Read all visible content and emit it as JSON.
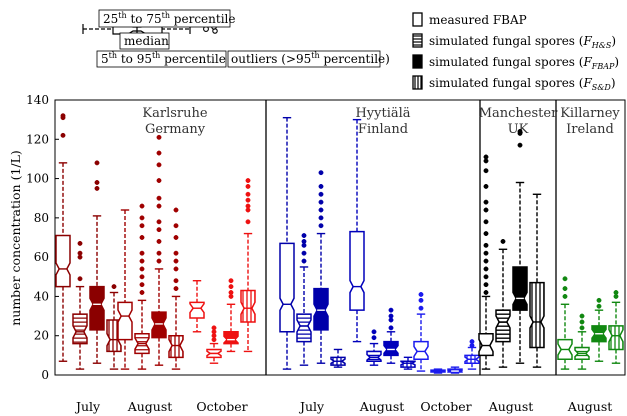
{
  "chart_data": {
    "type": "box",
    "ylabel": "number concentration (1/L)",
    "ylim": [
      0,
      140
    ],
    "yticks": [
      0,
      20,
      40,
      60,
      80,
      100,
      120,
      140
    ],
    "key": {
      "p25_75_main": "25",
      "p25_75_sup1": "th",
      "p25_75_mid": " to 75",
      "p25_75_sup2": "th",
      "p25_75_end": " percentile",
      "median": "median",
      "p5_95_main": "5",
      "p5_95_sup1": "th",
      "p5_95_mid": " to 95",
      "p5_95_sup2": "th",
      "p5_95_end": " percentile",
      "outliers": "outliers (>95",
      "outliers_sup": "th",
      "outliers_end": " percentile)"
    },
    "legend": [
      {
        "text": "measured FBAP",
        "sub": "",
        "pattern": "open"
      },
      {
        "text": "simulated fungal spores (",
        "italic": "F",
        "sub": "H&S",
        "end": ")",
        "pattern": "hstripe"
      },
      {
        "text": "simulated fungal spores (",
        "italic": "F",
        "sub": "FBAP",
        "end": ")",
        "pattern": "solid"
      },
      {
        "text": "simulated fungal spores (",
        "italic": "F",
        "sub": "S&D",
        "end": ")",
        "pattern": "vstripe"
      }
    ],
    "sites": [
      {
        "name": "Karlsruhe",
        "country": "Germany",
        "color": "#8b0000",
        "color2": "#cc0000",
        "color3": "#ff1a1a"
      },
      {
        "name": "Hyytiälä",
        "country": "Finland",
        "color": "#0000aa",
        "color2": "#0000cc",
        "color3": "#3333ff"
      },
      {
        "name": "Manchester",
        "country": "UK",
        "color": "#000000"
      },
      {
        "name": "Killarney",
        "country": "Ireland",
        "color": "#008800"
      }
    ],
    "groups": [
      {
        "site": 0,
        "month": "July",
        "color": "#8b0000",
        "boxes": [
          {
            "p5": 7,
            "q1": 45,
            "median": 54,
            "q3": 71,
            "p95": 108,
            "outliers": [
              122,
              131,
              132
            ]
          },
          {
            "p5": 3,
            "q1": 16,
            "median": 22,
            "q3": 31,
            "p95": 45,
            "outliers": [
              49,
              60,
              62,
              67
            ]
          },
          {
            "p5": 6,
            "q1": 23,
            "median": 36,
            "q3": 45,
            "p95": 81,
            "outliers": [
              95,
              98,
              108
            ]
          },
          {
            "p5": 3,
            "q1": 12,
            "median": 18,
            "q3": 28,
            "p95": 42,
            "outliers": [
              45
            ]
          }
        ]
      },
      {
        "site": 0,
        "month": "August",
        "color": "#a00000",
        "boxes": [
          {
            "p5": 3,
            "q1": 18,
            "median": 30,
            "q3": 37,
            "p95": 84,
            "outliers": []
          },
          {
            "p5": 3,
            "q1": 11,
            "median": 16,
            "q3": 21,
            "p95": 38,
            "outliers": [
              42,
              46,
              50,
              54,
              58,
              62,
              70,
              76,
              80,
              86
            ]
          },
          {
            "p5": 5,
            "q1": 19,
            "median": 26,
            "q3": 32,
            "p95": 54,
            "outliers": [
              58,
              62,
              68,
              74,
              78,
              86,
              90,
              99,
              107,
              113,
              121
            ]
          },
          {
            "p5": 3,
            "q1": 9,
            "median": 15,
            "q3": 20,
            "p95": 40,
            "outliers": [
              44,
              48,
              54,
              58,
              62,
              70,
              76,
              84
            ]
          }
        ]
      },
      {
        "site": 0,
        "month": "October",
        "color": "#ee1111",
        "boxes": [
          {
            "p5": 22,
            "q1": 29,
            "median": 34,
            "q3": 37,
            "p95": 48,
            "outliers": []
          },
          {
            "p5": 6,
            "q1": 9,
            "median": 11,
            "q3": 13,
            "p95": 16,
            "outliers": [
              18,
              20,
              22,
              24
            ]
          },
          {
            "p5": 12,
            "q1": 16,
            "median": 18,
            "q3": 22,
            "p95": 36,
            "outliers": [
              40,
              42,
              45,
              48
            ]
          },
          {
            "p5": 12,
            "q1": 27,
            "median": 34,
            "q3": 43,
            "p95": 72,
            "outliers": [
              78,
              84,
              86,
              89,
              92,
              96,
              99
            ]
          }
        ]
      },
      {
        "site": 1,
        "month": "July",
        "color": "#0000aa",
        "boxes": [
          {
            "p5": 3,
            "q1": 22,
            "median": 36,
            "q3": 67,
            "p95": 131,
            "outliers": []
          },
          {
            "p5": 5,
            "q1": 17,
            "median": 25,
            "q3": 31,
            "p95": 55,
            "outliers": [
              58,
              62,
              66,
              68,
              71
            ]
          },
          {
            "p5": 6,
            "q1": 23,
            "median": 33,
            "q3": 44,
            "p95": 72,
            "outliers": [
              76,
              80,
              84,
              88,
              92,
              96,
              103
            ]
          },
          {
            "p5": 4,
            "q1": 5,
            "median": 7,
            "q3": 9,
            "p95": 13,
            "outliers": []
          }
        ]
      },
      {
        "site": 1,
        "month": "August",
        "color": "#0000bb",
        "boxes": [
          {
            "p5": 17,
            "q1": 33,
            "median": 45,
            "q3": 73,
            "p95": 130,
            "outliers": []
          },
          {
            "p5": 5,
            "q1": 7,
            "median": 9,
            "q3": 12,
            "p95": 16,
            "outliers": [
              19,
              22
            ]
          },
          {
            "p5": 6,
            "q1": 10,
            "median": 13,
            "q3": 17,
            "p95": 22,
            "outliers": [
              24,
              28,
              30,
              33
            ]
          },
          {
            "p5": 3,
            "q1": 4,
            "median": 6,
            "q3": 7,
            "p95": 9,
            "outliers": []
          }
        ]
      },
      {
        "site": 1,
        "month": "October",
        "color": "#1a1aee",
        "boxes": [
          {
            "p5": 2,
            "q1": 8,
            "median": 12,
            "q3": 17,
            "p95": 31,
            "outliers": [
              34,
              38,
              41
            ]
          },
          {
            "p5": 1,
            "q1": 1.5,
            "median": 2,
            "q3": 2.5,
            "p95": 3,
            "outliers": []
          },
          {
            "p5": 1,
            "q1": 1.5,
            "median": 2,
            "q3": 3,
            "p95": 4,
            "outliers": []
          },
          {
            "p5": 3,
            "q1": 6,
            "median": 8,
            "q3": 10,
            "p95": 14,
            "outliers": [
              15,
              17
            ]
          }
        ]
      },
      {
        "site": 2,
        "month": "August",
        "color": "#000000",
        "boxes": [
          {
            "p5": 3,
            "q1": 10,
            "median": 15,
            "q3": 21,
            "p95": 40,
            "outliers": [
              42,
              46,
              50,
              54,
              58,
              62,
              66,
              72,
              78,
              84,
              88,
              96,
              104,
              109,
              111
            ]
          },
          {
            "p5": 4,
            "q1": 17,
            "median": 27,
            "q3": 33,
            "p95": 64,
            "outliers": [
              68
            ]
          },
          {
            "p5": 6,
            "q1": 33,
            "median": 39,
            "q3": 55,
            "p95": 98,
            "outliers": [
              117,
              123,
              124
            ]
          },
          {
            "p5": 4,
            "q1": 14,
            "median": 27,
            "q3": 47,
            "p95": 92,
            "outliers": []
          }
        ]
      },
      {
        "site": 3,
        "month": "August",
        "color": "#118811",
        "boxes": [
          {
            "p5": 3,
            "q1": 8,
            "median": 13,
            "q3": 18,
            "p95": 36,
            "outliers": [
              40,
              44,
              49
            ]
          },
          {
            "p5": 3,
            "q1": 8,
            "median": 11,
            "q3": 14,
            "p95": 22,
            "outliers": [
              24,
              27,
              30
            ]
          },
          {
            "p5": 7,
            "q1": 17,
            "median": 21,
            "q3": 25,
            "p95": 33,
            "outliers": [
              35,
              38
            ]
          },
          {
            "p5": 6,
            "q1": 13,
            "median": 20,
            "q3": 25,
            "p95": 37,
            "outliers": [
              40,
              42
            ]
          }
        ]
      }
    ]
  }
}
